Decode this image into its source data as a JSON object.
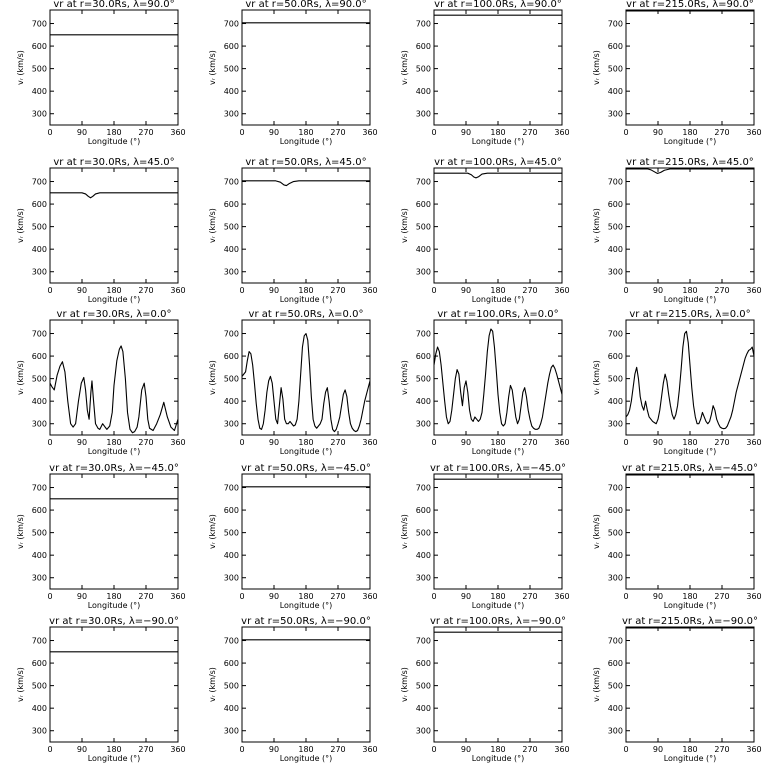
{
  "chart_data": {
    "type": "line",
    "grid": false,
    "x_label": "Longitude (°)",
    "y_label": "vᵣ (km/s)",
    "xlim": [
      0,
      360
    ],
    "ylim": [
      250,
      760
    ],
    "x_ticks": [
      0,
      90,
      180,
      270,
      360
    ],
    "y_ticks": [
      300,
      400,
      500,
      600,
      700
    ],
    "panels": [
      {
        "title": "vr at r=30.0Rs, λ=90.0°",
        "row": 0,
        "col": 0,
        "x": [
          0,
          360
        ],
        "y": [
          650,
          650
        ]
      },
      {
        "title": "vr at r=50.0Rs, λ=90.0°",
        "row": 0,
        "col": 1,
        "x": [
          0,
          360
        ],
        "y": [
          703,
          703
        ]
      },
      {
        "title": "vr at r=100.0Rs, λ=90.0°",
        "row": 0,
        "col": 2,
        "x": [
          0,
          360
        ],
        "y": [
          737,
          737
        ]
      },
      {
        "title": "vr at r=215.0Rs, λ=90.0°",
        "row": 0,
        "col": 3,
        "x": [
          0,
          360
        ],
        "y": [
          756,
          756
        ]
      },
      {
        "title": "vr at r=30.0Rs, λ=45.0°",
        "row": 1,
        "col": 0,
        "x": [
          0,
          90,
          100,
          108,
          114,
          120,
          128,
          140,
          360
        ],
        "y": [
          650,
          650,
          645,
          634,
          628,
          634,
          645,
          650,
          650
        ]
      },
      {
        "title": "vr at r=50.0Rs, λ=45.0°",
        "row": 1,
        "col": 1,
        "x": [
          0,
          95,
          108,
          118,
          125,
          132,
          145,
          160,
          360
        ],
        "y": [
          703,
          703,
          697,
          685,
          682,
          690,
          700,
          703,
          703
        ]
      },
      {
        "title": "vr at r=100.0Rs, λ=45.0°",
        "row": 1,
        "col": 2,
        "x": [
          0,
          95,
          105,
          112,
          118,
          126,
          135,
          150,
          360
        ],
        "y": [
          737,
          737,
          730,
          720,
          716,
          722,
          733,
          737,
          737
        ]
      },
      {
        "title": "vr at r=215.0Rs, λ=45.0°",
        "row": 1,
        "col": 3,
        "x": [
          0,
          60,
          70,
          80,
          88,
          97,
          108,
          125,
          360
        ],
        "y": [
          756,
          756,
          752,
          743,
          736,
          740,
          750,
          756,
          756
        ]
      },
      {
        "title": "vr at r=30.0Rs, λ=0.0°",
        "row": 2,
        "col": 0,
        "x": [
          0,
          5,
          12,
          20,
          28,
          35,
          42,
          50,
          58,
          65,
          72,
          80,
          88,
          95,
          100,
          105,
          110,
          115,
          118,
          122,
          128,
          135,
          140,
          148,
          155,
          160,
          168,
          175,
          180,
          188,
          195,
          200,
          205,
          212,
          218,
          225,
          232,
          238,
          245,
          250,
          258,
          265,
          270,
          275,
          280,
          290,
          300,
          310,
          320,
          330,
          340,
          350,
          360
        ],
        "y": [
          480,
          465,
          450,
          515,
          555,
          575,
          530,
          400,
          300,
          285,
          300,
          400,
          480,
          505,
          450,
          360,
          320,
          440,
          490,
          410,
          300,
          280,
          275,
          300,
          285,
          275,
          290,
          350,
          470,
          580,
          630,
          645,
          620,
          500,
          350,
          275,
          260,
          265,
          285,
          330,
          450,
          480,
          420,
          320,
          280,
          270,
          300,
          340,
          395,
          330,
          285,
          270,
          320
        ]
      },
      {
        "title": "vr at r=50.0Rs, λ=0.0°",
        "row": 2,
        "col": 1,
        "x": [
          0,
          5,
          10,
          15,
          20,
          25,
          30,
          35,
          40,
          45,
          50,
          55,
          60,
          65,
          70,
          75,
          80,
          85,
          90,
          95,
          100,
          105,
          110,
          115,
          120,
          125,
          130,
          135,
          140,
          145,
          150,
          155,
          160,
          165,
          170,
          175,
          180,
          185,
          190,
          195,
          200,
          205,
          210,
          215,
          220,
          225,
          230,
          235,
          240,
          245,
          250,
          255,
          260,
          265,
          270,
          275,
          280,
          285,
          290,
          295,
          300,
          305,
          310,
          315,
          320,
          325,
          330,
          335,
          340,
          345,
          350,
          355,
          360
        ],
        "y": [
          510,
          520,
          530,
          580,
          620,
          610,
          560,
          480,
          390,
          320,
          280,
          275,
          300,
          360,
          440,
          490,
          510,
          480,
          400,
          320,
          300,
          380,
          460,
          410,
          320,
          300,
          300,
          310,
          300,
          290,
          295,
          320,
          400,
          520,
          640,
          690,
          700,
          670,
          560,
          420,
          320,
          290,
          280,
          290,
          300,
          320,
          390,
          440,
          460,
          400,
          320,
          275,
          265,
          275,
          300,
          330,
          380,
          430,
          450,
          420,
          350,
          300,
          280,
          270,
          265,
          270,
          290,
          320,
          360,
          400,
          430,
          460,
          490
        ]
      },
      {
        "title": "vr at r=100.0Rs, λ=0.0°",
        "row": 2,
        "col": 2,
        "x": [
          0,
          5,
          10,
          15,
          20,
          25,
          30,
          35,
          40,
          45,
          50,
          55,
          60,
          65,
          70,
          75,
          80,
          85,
          90,
          95,
          100,
          105,
          110,
          115,
          120,
          125,
          130,
          135,
          140,
          145,
          150,
          155,
          160,
          165,
          170,
          175,
          180,
          185,
          190,
          195,
          200,
          205,
          210,
          215,
          220,
          225,
          230,
          235,
          240,
          245,
          250,
          255,
          260,
          265,
          270,
          275,
          280,
          285,
          290,
          295,
          300,
          305,
          310,
          315,
          320,
          325,
          330,
          335,
          340,
          345,
          350,
          355,
          360
        ],
        "y": [
          560,
          610,
          640,
          620,
          560,
          480,
          400,
          330,
          300,
          310,
          360,
          430,
          500,
          540,
          520,
          440,
          380,
          460,
          490,
          440,
          360,
          320,
          310,
          330,
          320,
          310,
          320,
          350,
          430,
          520,
          620,
          690,
          720,
          710,
          640,
          540,
          430,
          350,
          300,
          290,
          300,
          350,
          420,
          470,
          450,
          390,
          330,
          300,
          320,
          380,
          440,
          460,
          420,
          360,
          320,
          290,
          280,
          275,
          275,
          280,
          300,
          330,
          380,
          430,
          480,
          520,
          550,
          560,
          545,
          520,
          490,
          460,
          430
        ]
      },
      {
        "title": "vr at r=215.0Rs, λ=0.0°",
        "row": 2,
        "col": 3,
        "x": [
          0,
          5,
          10,
          15,
          20,
          25,
          30,
          35,
          40,
          45,
          50,
          55,
          60,
          65,
          70,
          75,
          80,
          85,
          90,
          95,
          100,
          105,
          110,
          115,
          120,
          125,
          130,
          135,
          140,
          145,
          150,
          155,
          160,
          165,
          170,
          175,
          180,
          185,
          190,
          195,
          200,
          205,
          210,
          215,
          220,
          225,
          230,
          235,
          240,
          245,
          250,
          255,
          260,
          265,
          270,
          275,
          280,
          285,
          290,
          295,
          300,
          305,
          310,
          315,
          320,
          325,
          330,
          335,
          340,
          345,
          350,
          355,
          360
        ],
        "y": [
          330,
          340,
          360,
          400,
          460,
          520,
          550,
          500,
          420,
          380,
          360,
          400,
          360,
          330,
          320,
          310,
          305,
          300,
          320,
          360,
          420,
          480,
          520,
          490,
          430,
          380,
          340,
          320,
          340,
          380,
          450,
          540,
          640,
          700,
          710,
          660,
          560,
          460,
          380,
          330,
          300,
          300,
          320,
          350,
          330,
          310,
          300,
          310,
          340,
          380,
          360,
          320,
          300,
          285,
          280,
          278,
          280,
          290,
          310,
          330,
          360,
          400,
          440,
          470,
          500,
          530,
          560,
          590,
          610,
          625,
          630,
          640,
          600
        ]
      },
      {
        "title": "vr at r=30.0Rs, λ=−45.0°",
        "row": 3,
        "col": 0,
        "x": [
          0,
          360
        ],
        "y": [
          650,
          650
        ]
      },
      {
        "title": "vr at r=50.0Rs, λ=−45.0°",
        "row": 3,
        "col": 1,
        "x": [
          0,
          360
        ],
        "y": [
          703,
          703
        ]
      },
      {
        "title": "vr at r=100.0Rs, λ=−45.0°",
        "row": 3,
        "col": 2,
        "x": [
          0,
          360
        ],
        "y": [
          737,
          737
        ]
      },
      {
        "title": "vr at r=215.0Rs, λ=−45.0°",
        "row": 3,
        "col": 3,
        "x": [
          0,
          360
        ],
        "y": [
          756,
          756
        ]
      },
      {
        "title": "vr at r=30.0Rs, λ=−90.0°",
        "row": 4,
        "col": 0,
        "x": [
          0,
          360
        ],
        "y": [
          650,
          650
        ]
      },
      {
        "title": "vr at r=50.0Rs, λ=−90.0°",
        "row": 4,
        "col": 1,
        "x": [
          0,
          360
        ],
        "y": [
          703,
          703
        ]
      },
      {
        "title": "vr at r=100.0Rs, λ=−90.0°",
        "row": 4,
        "col": 2,
        "x": [
          0,
          360
        ],
        "y": [
          737,
          737
        ]
      },
      {
        "title": "vr at r=215.0Rs, λ=−90.0°",
        "row": 4,
        "col": 3,
        "x": [
          0,
          360
        ],
        "y": [
          756,
          756
        ]
      }
    ]
  }
}
